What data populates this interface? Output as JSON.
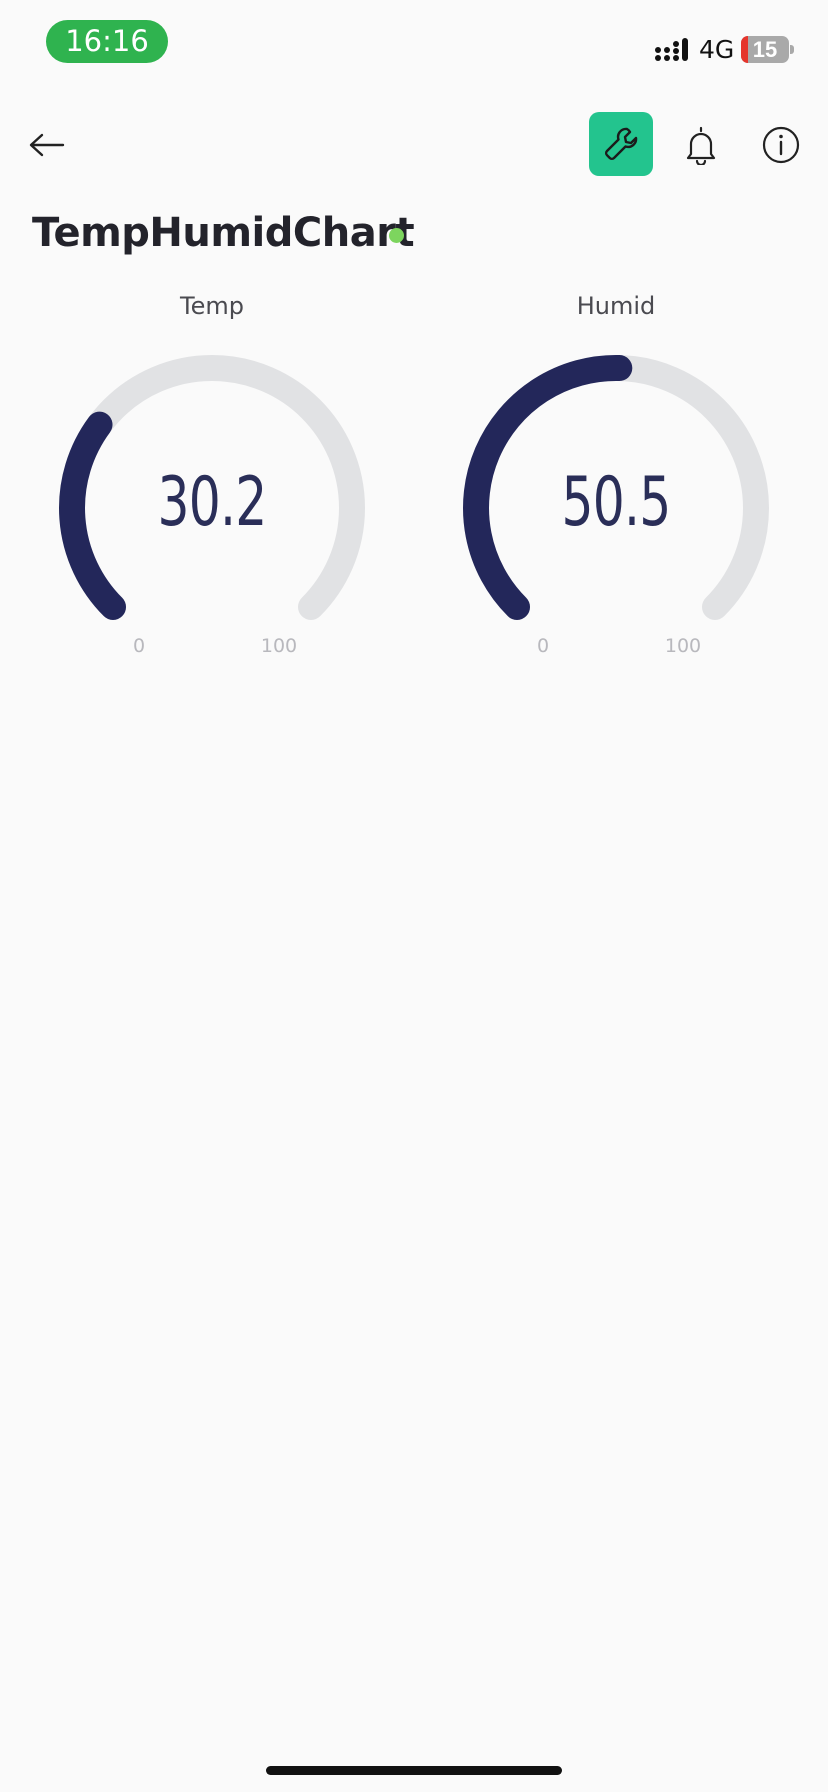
{
  "status_bar": {
    "time": "16:16",
    "network": "4G",
    "battery": "15",
    "battery_level": 0.15,
    "time_pill_color": "#2fb34f",
    "battery_low_color": "#e5352c",
    "signal_icon": "cellular-signal-icon"
  },
  "toolbar": {
    "back_icon": "arrow-left-icon",
    "settings_icon": "wrench-icon",
    "settings_color": "#23c48e",
    "notifications_icon": "bell-icon",
    "info_icon": "info-circle-icon"
  },
  "device": {
    "title": "TempHumidChart",
    "status_color": "#7dd55e"
  },
  "gauges": [
    {
      "label": "Temp",
      "value": "30.2",
      "min": "0",
      "max": "100",
      "fill_color": "#23275a",
      "track_color": "#e1e2e4"
    },
    {
      "label": "Humid",
      "value": "50.5",
      "min": "0",
      "max": "100",
      "fill_color": "#23275a",
      "track_color": "#e1e2e4"
    }
  ]
}
